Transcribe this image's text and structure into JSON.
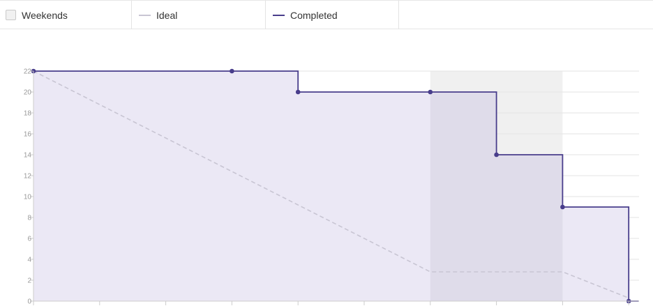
{
  "legend": {
    "weekends_label": "Weekends",
    "ideal_label": "Ideal",
    "completed_label": "Completed"
  },
  "colors": {
    "completed": "#483d8b",
    "completed_fill": "#ebe8f5",
    "ideal": "#c8c5d3",
    "weekend_band": "#f0f0f0",
    "weekend_overlap": "#dfdcea",
    "grid": "#e3e3e3"
  },
  "chart_data": {
    "type": "line",
    "step": true,
    "ylim": [
      0,
      22
    ],
    "yticks": [
      0,
      2,
      4,
      6,
      8,
      10,
      12,
      14,
      16,
      18,
      20,
      22
    ],
    "xlim": [
      0,
      9.15
    ],
    "weekend_ranges": [
      [
        6,
        8
      ]
    ],
    "series": [
      {
        "name": "Completed",
        "x": [
          0,
          3,
          4,
          6,
          7,
          8,
          9,
          9.15
        ],
        "values": [
          22,
          22,
          20,
          20,
          14,
          9,
          0,
          0
        ],
        "markers": [
          true,
          true,
          true,
          true,
          true,
          true,
          true,
          false
        ]
      },
      {
        "name": "Ideal",
        "x": [
          0,
          6,
          8,
          9
        ],
        "values": [
          22,
          2.8,
          2.8,
          0.3
        ]
      }
    ]
  }
}
